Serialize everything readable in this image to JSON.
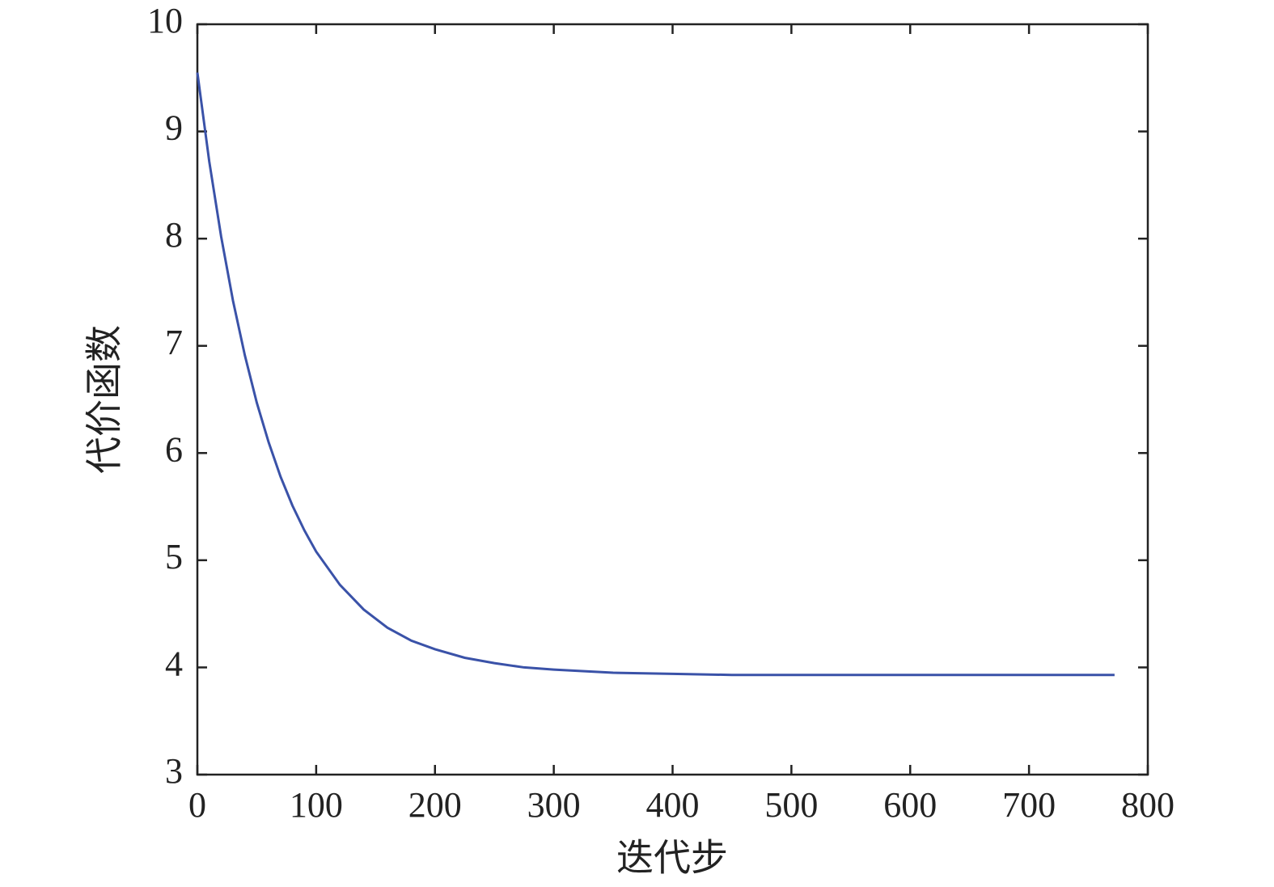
{
  "chart_data": {
    "type": "line",
    "x_label": "迭代步",
    "y_label": "代价函数",
    "x": [
      0,
      10,
      20,
      30,
      40,
      50,
      60,
      70,
      80,
      90,
      100,
      120,
      140,
      160,
      180,
      200,
      225,
      250,
      275,
      300,
      350,
      400,
      450,
      500,
      550,
      600,
      650,
      700,
      772
    ],
    "series": [
      {
        "color": "#3a52a8",
        "values": [
          9.55,
          8.72,
          8.02,
          7.42,
          6.91,
          6.47,
          6.1,
          5.78,
          5.51,
          5.28,
          5.08,
          4.77,
          4.54,
          4.37,
          4.25,
          4.17,
          4.09,
          4.04,
          4.0,
          3.98,
          3.95,
          3.94,
          3.93,
          3.93,
          3.93,
          3.93,
          3.93,
          3.93,
          3.93
        ]
      }
    ],
    "xlim": [
      0,
      800
    ],
    "xticks": [
      0,
      100,
      200,
      300,
      400,
      500,
      600,
      700,
      800
    ],
    "ylim": [
      3,
      10
    ],
    "yticks": [
      3,
      4,
      5,
      6,
      7,
      8,
      9,
      10
    ],
    "grid": false
  }
}
